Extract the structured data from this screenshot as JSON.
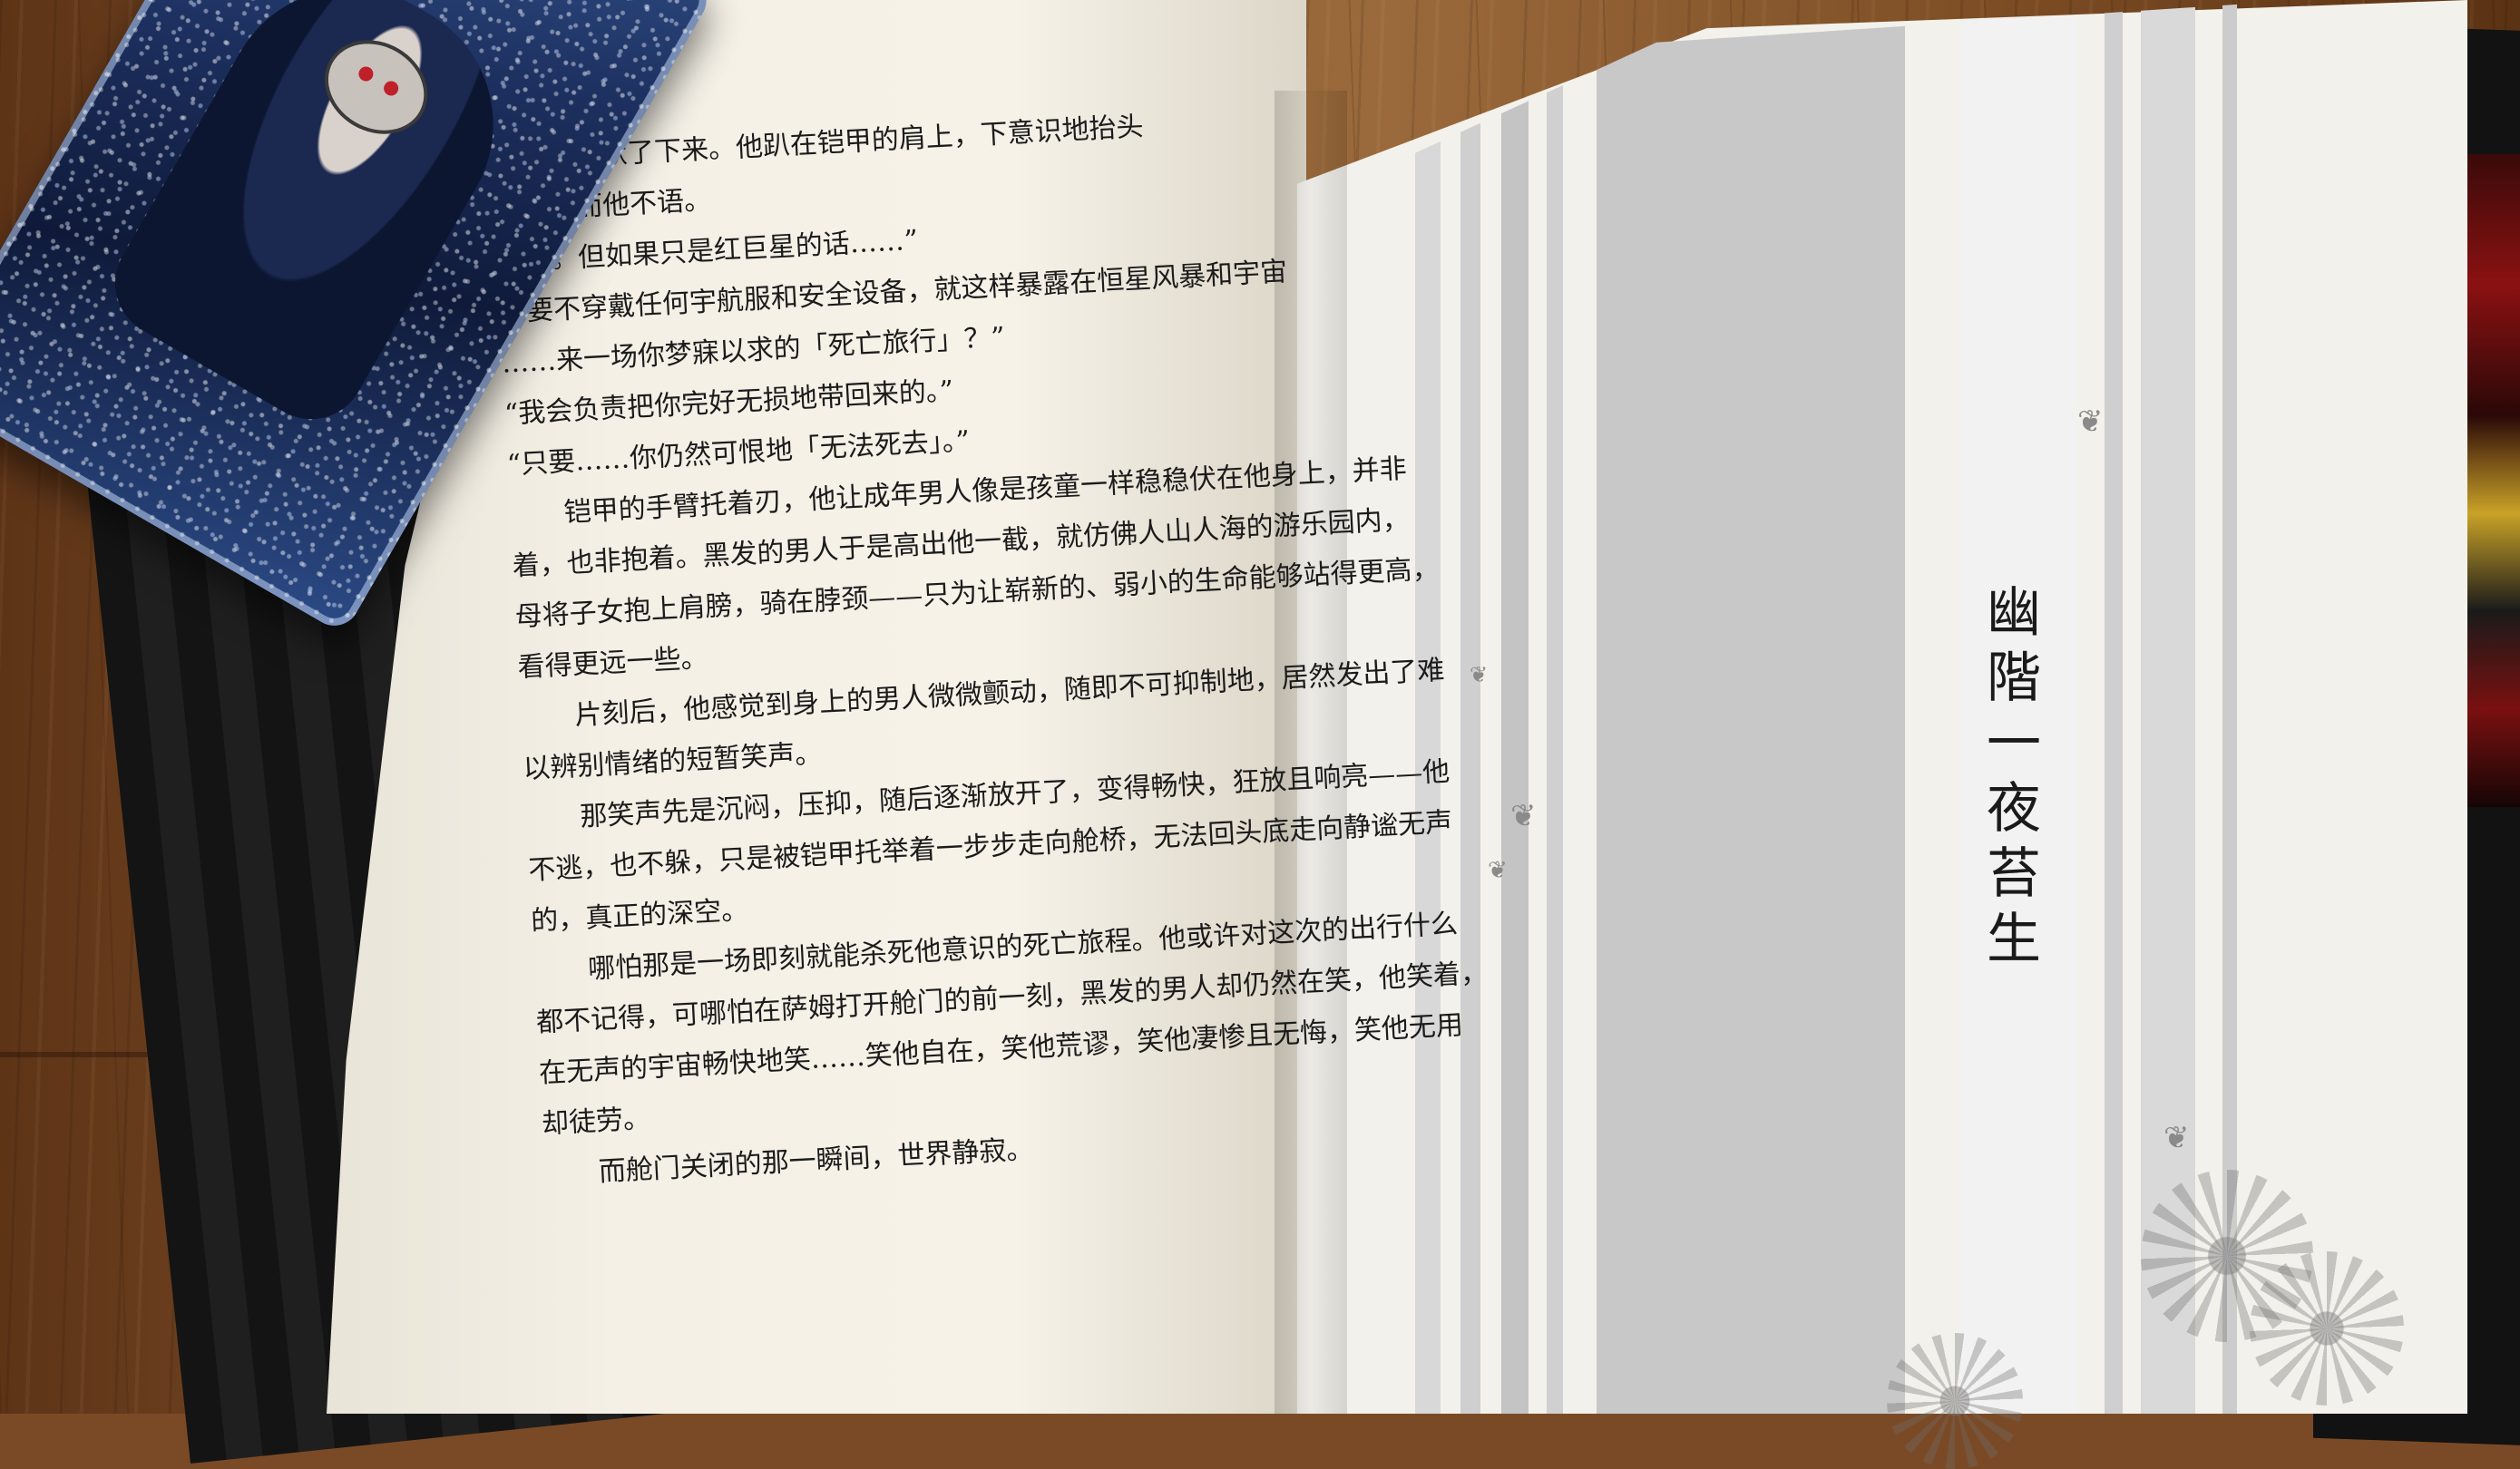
{
  "left_page": {
    "lines": [
      "的男人沉默了下来。他趴在铠甲的肩上，下意识地抬头",
      "幽深，而他不语。",
      "不行。但如果只是红巨星的话……”",
      "不要不穿戴任何宇航服和安全设备，就这样暴露在恒星风暴和宇宙",
      "……来一场你梦寐以求的「死亡旅行」？”",
      "“我会负责把你完好无损地带回来的。”",
      "“只要……你仍然可恨地「无法死去」。”",
      "铠甲的手臂托着刃，他让成年男人像是孩童一样稳稳伏在他身上，并非",
      "着，也非抱着。黑发的男人于是高出他一截，就仿佛人山人海的游乐园内，",
      "母将子女抱上肩膀，骑在脖颈——只为让崭新的、弱小的生命能够站得更高，",
      "看得更远一些。",
      "片刻后，他感觉到身上的男人微微颤动，随即不可抑制地，居然发出了难",
      "以辨别情绪的短暂笑声。",
      "那笑声先是沉闷，压抑，随后逐渐放开了，变得畅快，狂放且响亮——他",
      "不逃，也不躲，只是被铠甲托举着一步步走向舱桥，无法回头底走向静谧无声",
      "的，真正的深空。",
      "哪怕那是一场即刻就能杀死他意识的死亡旅程。他或许对这次的出行什么",
      "都不记得，可哪怕在萨姆打开舱门的前一刻，黑发的男人却仍然在笑，他笑着，",
      "在无声的宇宙畅快地笑……笑他自在，笑他荒谬，笑他凄惨且无悔，笑他无用",
      "却徒劳。",
      "而舱门关闭的那一瞬间，世界静寂。"
    ]
  },
  "right_page": {
    "chapter_title": [
      "幽",
      "階",
      "一",
      "夜",
      "苔",
      "生"
    ]
  },
  "colors": {
    "wood": "#7a4a26",
    "paper": "#f4f0e6",
    "stripe_gray": "#c9c9c9",
    "bookmark_blue": "#1c2f5e",
    "cover_black": "#141414"
  }
}
